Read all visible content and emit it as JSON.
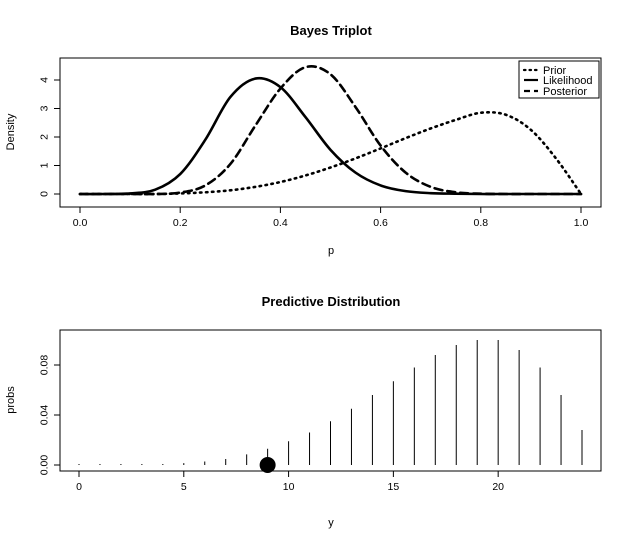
{
  "chart_data": [
    {
      "type": "line",
      "title": "Bayes Triplot",
      "xlabel": "p",
      "ylabel": "Density",
      "xlim": [
        0,
        1
      ],
      "ylim": [
        0,
        4.6
      ],
      "x_ticks": [
        "0.0",
        "0.2",
        "0.4",
        "0.6",
        "0.8",
        "1.0"
      ],
      "y_ticks": [
        "0",
        "1",
        "2",
        "3",
        "4"
      ],
      "legend_position": "top-right",
      "x": [
        0.0,
        0.05,
        0.1,
        0.15,
        0.2,
        0.25,
        0.3,
        0.35,
        0.4,
        0.45,
        0.5,
        0.55,
        0.6,
        0.65,
        0.7,
        0.75,
        0.8,
        0.85,
        0.9,
        0.95,
        1.0
      ],
      "series": [
        {
          "name": "Prior",
          "style": "dotted",
          "values": [
            0.0,
            0.0,
            0.0,
            0.0,
            0.02,
            0.06,
            0.13,
            0.25,
            0.42,
            0.65,
            0.93,
            1.25,
            1.6,
            1.96,
            2.3,
            2.6,
            2.85,
            2.78,
            2.25,
            1.25,
            0.0
          ]
        },
        {
          "name": "Likelihood",
          "style": "solid",
          "values": [
            0.0,
            0.0,
            0.02,
            0.15,
            0.7,
            1.9,
            3.4,
            4.05,
            3.75,
            2.7,
            1.55,
            0.75,
            0.3,
            0.1,
            0.03,
            0.01,
            0.0,
            0.0,
            0.0,
            0.0,
            0.0
          ]
        },
        {
          "name": "Posterior",
          "style": "dashed",
          "values": [
            0.0,
            0.0,
            0.0,
            0.0,
            0.05,
            0.3,
            1.05,
            2.4,
            3.7,
            4.45,
            4.2,
            3.05,
            1.7,
            0.75,
            0.25,
            0.06,
            0.01,
            0.0,
            0.0,
            0.0,
            0.0
          ]
        }
      ]
    },
    {
      "type": "bar",
      "title": "Predictive Distribution",
      "xlabel": "y",
      "ylabel": "probs",
      "xlim": [
        -1,
        24
      ],
      "ylim": [
        -0.003,
        0.105
      ],
      "x_ticks": [
        "0",
        "5",
        "10",
        "15",
        "20"
      ],
      "y_ticks": [
        "0.00",
        "0.04",
        "0.08"
      ],
      "x": [
        0,
        1,
        2,
        3,
        4,
        5,
        6,
        7,
        8,
        9,
        10,
        11,
        12,
        13,
        14,
        15,
        16,
        17,
        18,
        19,
        20,
        21,
        22,
        23,
        24
      ],
      "values": [
        0.0,
        0.0001,
        0.0002,
        0.0004,
        0.0008,
        0.0015,
        0.0028,
        0.0048,
        0.0085,
        0.013,
        0.019,
        0.026,
        0.035,
        0.045,
        0.056,
        0.067,
        0.078,
        0.088,
        0.096,
        0.1,
        0.1,
        0.092,
        0.078,
        0.056,
        0.028
      ],
      "highlight": {
        "x": 9,
        "y": 0.0
      }
    }
  ]
}
